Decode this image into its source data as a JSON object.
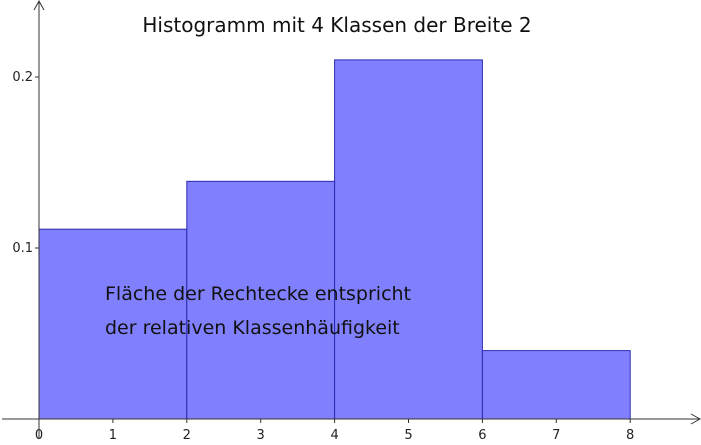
{
  "chart_data": {
    "type": "bar",
    "title": "Histogramm mit 4 Klassen der Breite 2",
    "bin_edges": [
      0,
      2,
      4,
      6,
      8
    ],
    "values": [
      0.111,
      0.139,
      0.21,
      0.04
    ],
    "xlim": [
      0,
      8.4
    ],
    "ylim": [
      0,
      0.24
    ],
    "x_ticks": [
      0,
      1,
      2,
      3,
      4,
      5,
      6,
      7,
      8
    ],
    "y_ticks": [
      0.1,
      0.2
    ],
    "x_tick_labels": [
      "0",
      "1",
      "2",
      "3",
      "4",
      "5",
      "6",
      "7",
      "8"
    ],
    "y_tick_labels": [
      "0.1",
      "0.2"
    ],
    "annotation_lines": [
      "Fläche der Rechtecke entspricht",
      "der relativen Klassenhäufigkeit"
    ],
    "bar_fill": "#8080ff",
    "bar_stroke": "#2a2ab0",
    "grid": false
  }
}
